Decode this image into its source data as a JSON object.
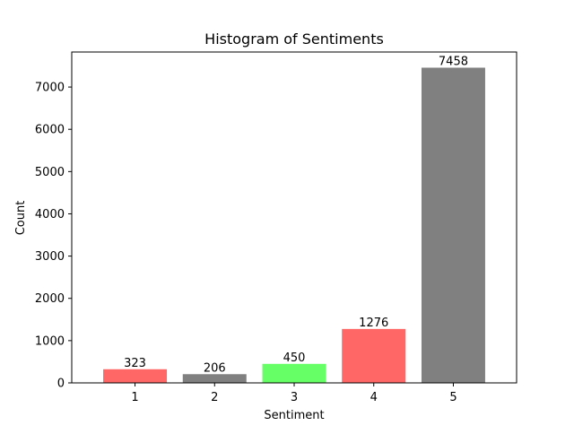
{
  "chart_data": {
    "type": "bar",
    "title": "Histogram of Sentiments",
    "xlabel": "Sentiment",
    "ylabel": "Count",
    "categories": [
      "1",
      "2",
      "3",
      "4",
      "5"
    ],
    "values": [
      323,
      206,
      450,
      1276,
      7458
    ],
    "value_labels": [
      "323",
      "206",
      "450",
      "1276",
      "7458"
    ],
    "bar_colors": [
      "#ff6666",
      "#808080",
      "#66ff66",
      "#ff6666",
      "#808080"
    ],
    "ylim": [
      0,
      7829
    ],
    "yticks": [
      0,
      1000,
      2000,
      3000,
      4000,
      5000,
      6000,
      7000
    ],
    "ytick_labels": [
      "0",
      "1000",
      "2000",
      "3000",
      "4000",
      "5000",
      "6000",
      "7000"
    ],
    "grid": false,
    "legend": "none"
  }
}
